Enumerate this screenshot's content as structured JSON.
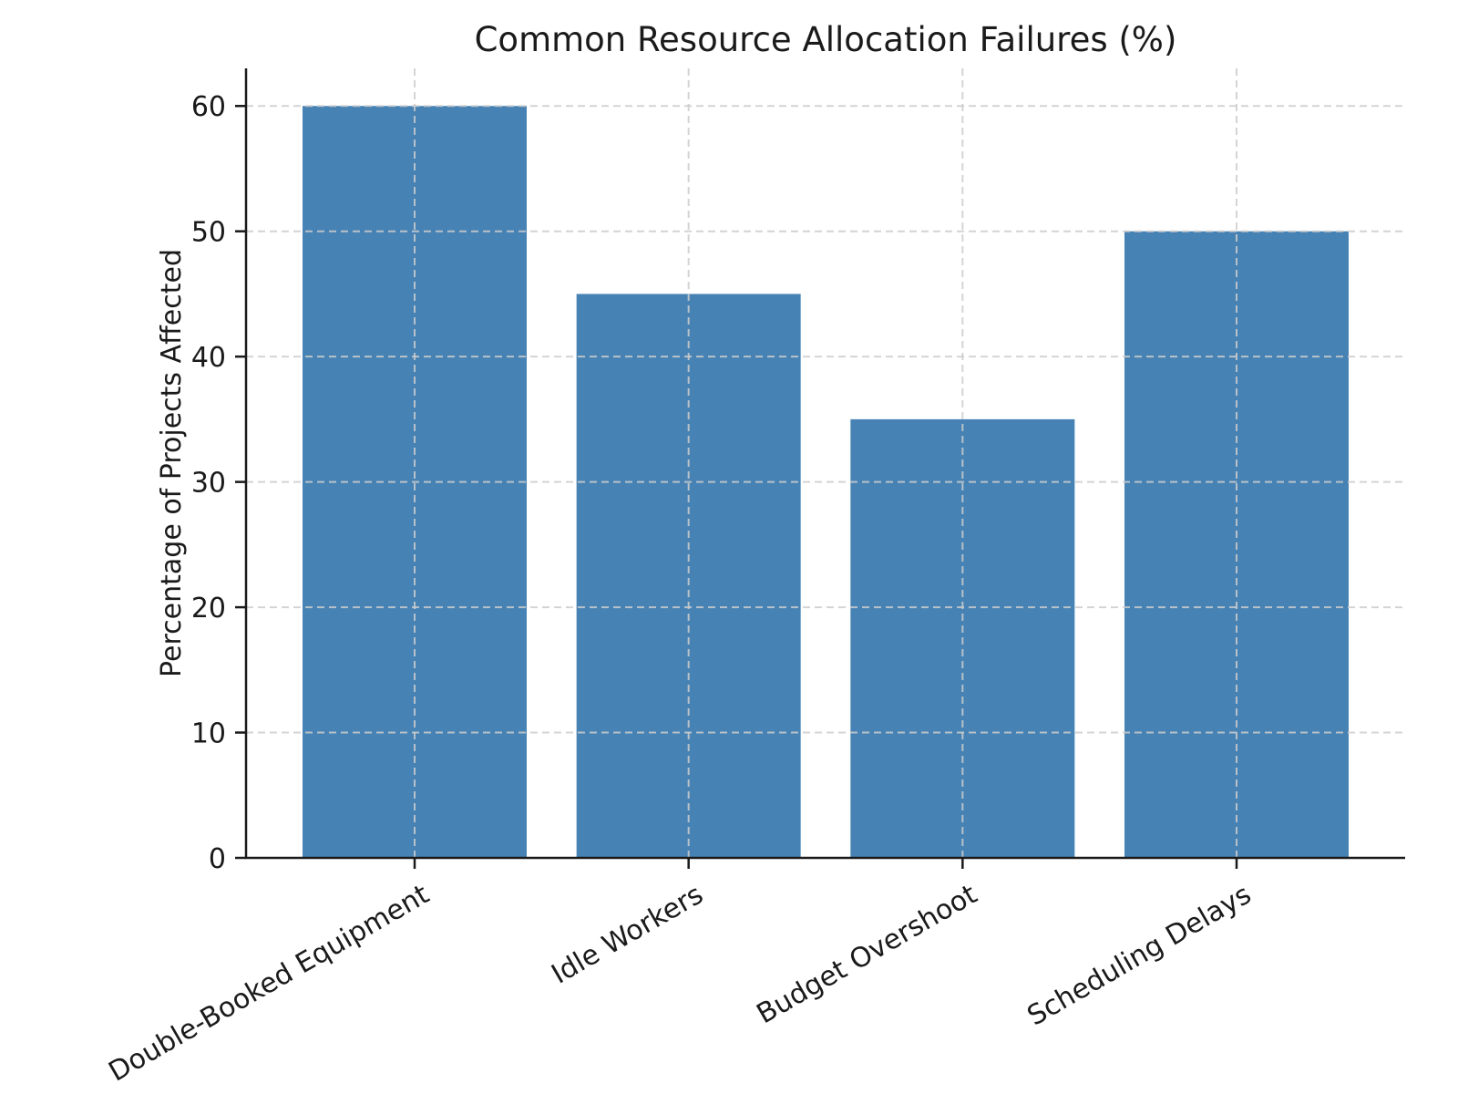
{
  "chart_data": {
    "type": "bar",
    "title": "Common Resource Allocation Failures (%)",
    "xlabel": "",
    "ylabel": "Percentage of Projects Affected",
    "categories": [
      "Double-Booked Equipment",
      "Idle Workers",
      "Budget Overshoot",
      "Scheduling Delays"
    ],
    "values": [
      60,
      45,
      35,
      50
    ],
    "yticks": [
      0,
      10,
      20,
      30,
      40,
      50,
      60
    ],
    "ylim": [
      0,
      63
    ],
    "grid": "on",
    "grid_style": "dashed",
    "legend": "none",
    "bar_color": "#4682B4",
    "grid_color": "#cccccc",
    "axis_color": "#1a1a1a",
    "background_color": "#ffffff",
    "x_tick_rotation_deg": 30
  }
}
